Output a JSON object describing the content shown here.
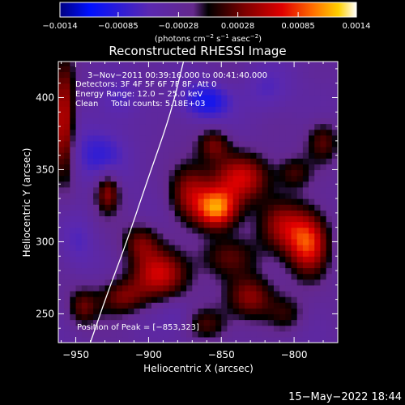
{
  "chart_data": {
    "type": "heatmap",
    "title": "Reconstructed RHESSI Image",
    "xlabel": "Heliocentric X (arcsec)",
    "ylabel": "Heliocentric Y (arcsec)",
    "xlim": [
      -962,
      -770
    ],
    "ylim": [
      230,
      425
    ],
    "xticks": [
      -950,
      -900,
      -850,
      -800
    ],
    "xtick_labels": [
      "−950",
      "−900",
      "−850",
      "−800"
    ],
    "yticks": [
      250,
      300,
      350,
      400
    ],
    "ytick_labels": [
      "250",
      "300",
      "350",
      "400"
    ],
    "colorbar": {
      "min": -0.0014,
      "max": 0.0014,
      "ticks": [
        -0.0014,
        -0.00085,
        -0.00028,
        0.00028,
        0.00085,
        0.0014
      ],
      "tick_labels": [
        "−0.0014",
        "−0.00085",
        "−0.00028",
        "0.00028",
        "0.00085",
        "0.0014"
      ],
      "unit_text": "(photons cm",
      "unit_sup1": "−2",
      "unit_mid": " s",
      "unit_sup2": "−1",
      "unit_mid2": " asec",
      "unit_sup3": "−2",
      "unit_end": ")"
    },
    "peak": [
      -853,
      323
    ],
    "sources": [
      {
        "x": -853,
        "y": 323,
        "amp": 0.0013,
        "sx": 10,
        "sy": 10
      },
      {
        "x": -835,
        "y": 345,
        "amp": 0.00095,
        "sx": 14,
        "sy": 12
      },
      {
        "x": -872,
        "y": 335,
        "amp": 0.00075,
        "sx": 10,
        "sy": 14
      },
      {
        "x": -790,
        "y": 300,
        "amp": 0.00115,
        "sx": 10,
        "sy": 15
      },
      {
        "x": -808,
        "y": 312,
        "amp": 0.0007,
        "sx": 11,
        "sy": 13
      },
      {
        "x": -845,
        "y": 290,
        "amp": 0.00055,
        "sx": 14,
        "sy": 10
      },
      {
        "x": -830,
        "y": 262,
        "amp": 0.00075,
        "sx": 12,
        "sy": 11
      },
      {
        "x": -892,
        "y": 278,
        "amp": 0.0009,
        "sx": 14,
        "sy": 12
      },
      {
        "x": -918,
        "y": 262,
        "amp": 0.00065,
        "sx": 12,
        "sy": 9
      },
      {
        "x": -945,
        "y": 255,
        "amp": 0.00055,
        "sx": 7,
        "sy": 9
      },
      {
        "x": -958,
        "y": 385,
        "amp": 0.001,
        "sx": 5,
        "sy": 28
      },
      {
        "x": -928,
        "y": 335,
        "amp": 0.00075,
        "sx": 6,
        "sy": 10
      },
      {
        "x": -905,
        "y": 300,
        "amp": 0.00055,
        "sx": 9,
        "sy": 9
      },
      {
        "x": -780,
        "y": 370,
        "amp": 0.00055,
        "sx": 8,
        "sy": 10
      },
      {
        "x": -800,
        "y": 348,
        "amp": 0.00045,
        "sx": 8,
        "sy": 8
      },
      {
        "x": -860,
        "y": 243,
        "amp": 0.00045,
        "sx": 10,
        "sy": 8
      },
      {
        "x": -805,
        "y": 250,
        "amp": 0.0004,
        "sx": 9,
        "sy": 9
      },
      {
        "x": -855,
        "y": 368,
        "amp": 0.0006,
        "sx": 8,
        "sy": 8
      },
      {
        "x": -820,
        "y": 405,
        "amp": -0.0003,
        "sx": 12,
        "sy": 12
      },
      {
        "x": -860,
        "y": 398,
        "amp": -0.00065,
        "sx": 12,
        "sy": 9
      },
      {
        "x": -935,
        "y": 360,
        "amp": -0.00045,
        "sx": 14,
        "sy": 14
      },
      {
        "x": -920,
        "y": 400,
        "amp": -0.00035,
        "sx": 10,
        "sy": 10
      },
      {
        "x": -948,
        "y": 300,
        "amp": -0.00025,
        "sx": 8,
        "sy": 14
      },
      {
        "x": -880,
        "y": 250,
        "amp": -0.0002,
        "sx": 8,
        "sy": 8
      }
    ],
    "limb_curve": [
      [
        -940,
        230
      ],
      [
        -928,
        265
      ],
      [
        -915,
        300
      ],
      [
        -900,
        345
      ],
      [
        -885,
        388
      ],
      [
        -876,
        425
      ]
    ],
    "annotations": [
      "3−Nov−2011 00:39:16.000 to 00:41:40.000",
      "Detectors: 3F 4F 5F 6F 7F 8F, Att 0",
      "Energy Range: 12.0 − 25.0 keV",
      "Clean     Total counts: 5.18E+03",
      "Position of Peak = [−853,323]"
    ],
    "grid": false,
    "colormap": "idl-rainbow-hot"
  },
  "footer": {
    "timestamp": "15−May−2022 18:44"
  }
}
